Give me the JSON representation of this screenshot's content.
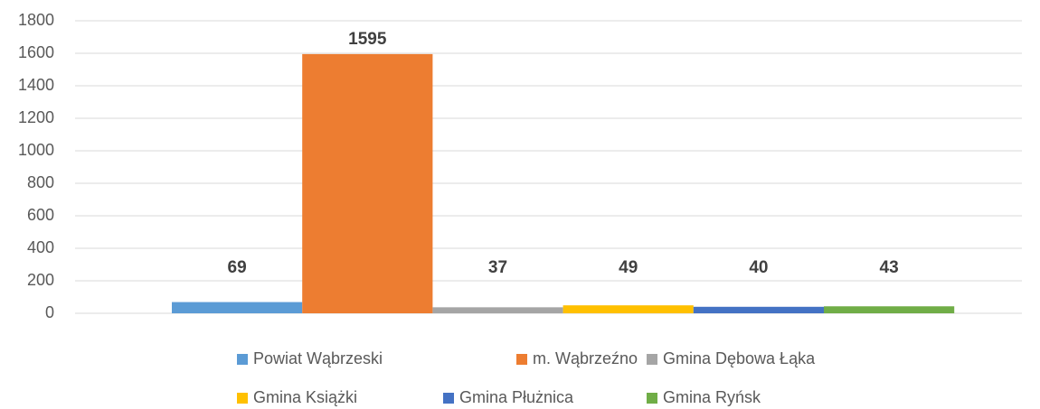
{
  "chart_data": {
    "type": "bar",
    "series": [
      {
        "name": "Powiat Wąbrzeski",
        "color": "#5b9bd5",
        "values": [
          69
        ]
      },
      {
        "name": "m. Wąbrzeźno",
        "color": "#ed7d31",
        "values": [
          1595
        ]
      },
      {
        "name": "Gmina Dębowa Łąka",
        "color": "#a5a5a5",
        "values": [
          37
        ]
      },
      {
        "name": "Gmina Książki",
        "color": "#ffc000",
        "values": [
          49
        ]
      },
      {
        "name": "Gmina Płużnica",
        "color": "#4472c4",
        "values": [
          40
        ]
      },
      {
        "name": "Gmina Ryńsk",
        "color": "#70ad47",
        "values": [
          43
        ]
      }
    ],
    "ylim": [
      0,
      1800
    ],
    "yticks": [
      0,
      200,
      400,
      600,
      800,
      1000,
      1200,
      1400,
      1600,
      1800
    ],
    "grid": true
  }
}
